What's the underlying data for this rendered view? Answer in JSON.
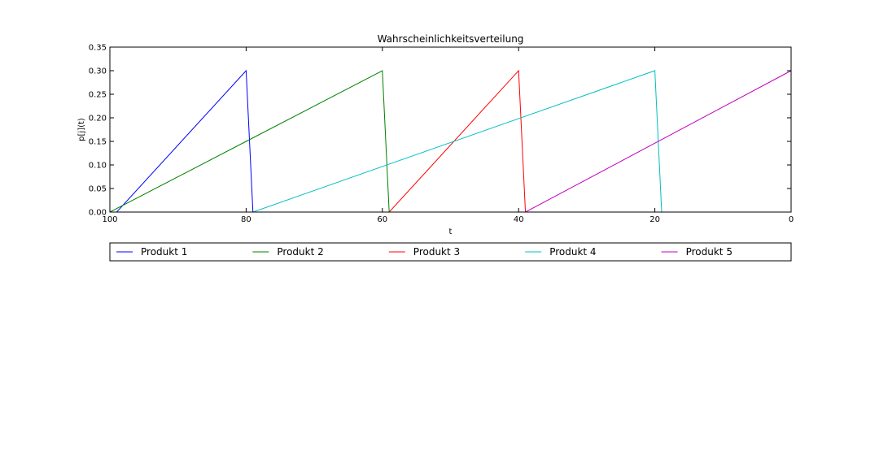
{
  "chart_data": {
    "type": "line",
    "title": "Wahrscheinlichkeitsverteilung",
    "xlabel": "t",
    "ylabel": "p[j](t)",
    "xlim": [
      100,
      0
    ],
    "ylim": [
      0,
      0.35
    ],
    "x_ticks": [
      "100",
      "80",
      "60",
      "40",
      "20",
      "0"
    ],
    "x_tick_values": [
      100,
      80,
      60,
      40,
      20,
      0
    ],
    "y_ticks": [
      "0.00",
      "0.05",
      "0.10",
      "0.15",
      "0.20",
      "0.25",
      "0.30",
      "0.35"
    ],
    "y_tick_values": [
      0,
      0.05,
      0.1,
      0.15,
      0.2,
      0.25,
      0.3,
      0.35
    ],
    "grid": false,
    "legend_placement": "below",
    "series": [
      {
        "name": "Produkt 1",
        "color": "#0000ff",
        "x": [
          100,
          99,
          80,
          79,
          0
        ],
        "y": [
          0,
          0,
          0.3,
          0,
          0
        ]
      },
      {
        "name": "Produkt 2",
        "color": "#008000",
        "x": [
          100,
          80,
          60,
          59,
          0
        ],
        "y": [
          0,
          0.15,
          0.3,
          0,
          0
        ]
      },
      {
        "name": "Produkt 3",
        "color": "#ff0000",
        "x": [
          100,
          59,
          40,
          39,
          0
        ],
        "y": [
          0,
          0,
          0.3,
          0,
          0
        ]
      },
      {
        "name": "Produkt 4",
        "color": "#00bfbf",
        "x": [
          100,
          79,
          20,
          19,
          0
        ],
        "y": [
          0,
          0,
          0.3,
          0,
          0
        ]
      },
      {
        "name": "Produkt 5",
        "color": "#bf00bf",
        "x": [
          100,
          39,
          0
        ],
        "y": [
          0,
          0,
          0.3
        ]
      }
    ]
  }
}
